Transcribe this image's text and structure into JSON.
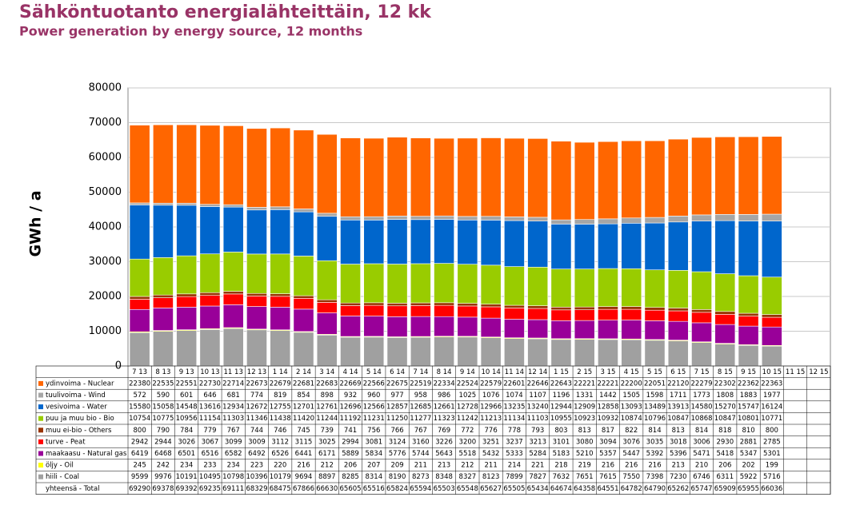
{
  "chart_data": {
    "type": "stacked-bar",
    "title": "Sähköntuotanto energialähteittäin, 12 kk",
    "subtitle": "Power generation by energy source, 12 months",
    "y_label": "GWh / a",
    "categories": [
      "7 13",
      "8 13",
      "9 13",
      "10 13",
      "11 13",
      "12 13",
      "1 14",
      "2 14",
      "3 14",
      "4 14",
      "5 14",
      "6 14",
      "7 14",
      "8 14",
      "9 14",
      "10 14",
      "11 14",
      "12 14",
      "1 15",
      "2 15",
      "3 15",
      "4 15",
      "5 15",
      "6 15",
      "7 15",
      "8 15",
      "9 15",
      "10 15",
      "11 15",
      "12 15"
    ],
    "ylim": [
      0,
      80000
    ],
    "yticks": [
      0,
      10000,
      20000,
      30000,
      40000,
      50000,
      60000,
      70000,
      80000
    ],
    "grid": true,
    "series": [
      {
        "name": "hiili - Coal",
        "color": "#a0a0a0",
        "values": [
          9599,
          9976,
          10191,
          10495,
          10798,
          10396,
          10179,
          9694,
          8897,
          8285,
          8314,
          8190,
          8273,
          8348,
          8327,
          8123,
          7899,
          7827,
          7632,
          7651,
          7615,
          7550,
          7398,
          7230,
          6746,
          6311,
          5922,
          5716,
          null,
          null
        ]
      },
      {
        "name": "öljy - Oil",
        "color": "#ffff00",
        "values": [
          245,
          242,
          234,
          233,
          234,
          223,
          220,
          216,
          212,
          206,
          207,
          209,
          211,
          213,
          212,
          211,
          214,
          221,
          218,
          219,
          216,
          216,
          216,
          213,
          210,
          206,
          202,
          199,
          null,
          null
        ]
      },
      {
        "name": "maakaasu - Natural gas",
        "color": "#990099",
        "values": [
          6419,
          6468,
          6501,
          6516,
          6582,
          6492,
          6526,
          6441,
          6171,
          5889,
          5834,
          5776,
          5744,
          5643,
          5518,
          5432,
          5333,
          5284,
          5183,
          5210,
          5357,
          5447,
          5392,
          5396,
          5471,
          5418,
          5347,
          5301,
          null,
          null
        ]
      },
      {
        "name": "turve - Peat",
        "color": "#ff0000",
        "values": [
          2942,
          2944,
          3026,
          3067,
          3099,
          3009,
          3112,
          3115,
          3025,
          2994,
          3081,
          3124,
          3160,
          3226,
          3200,
          3251,
          3237,
          3213,
          3101,
          3080,
          3094,
          3076,
          3035,
          3018,
          3006,
          2930,
          2881,
          2785,
          null,
          null
        ]
      },
      {
        "name": "muu ei-bio - Others",
        "color": "#993300",
        "values": [
          800,
          790,
          784,
          779,
          767,
          744,
          746,
          745,
          739,
          741,
          756,
          766,
          767,
          769,
          772,
          776,
          778,
          793,
          803,
          813,
          817,
          822,
          814,
          813,
          814,
          818,
          810,
          800,
          null,
          null
        ]
      },
      {
        "name": "puu ja muu bio - Bio",
        "color": "#99cc00",
        "values": [
          10754,
          10775,
          10956,
          11154,
          11303,
          11346,
          11438,
          11420,
          11244,
          11192,
          11231,
          11250,
          11277,
          11323,
          11242,
          11213,
          11134,
          11103,
          10955,
          10923,
          10932,
          10874,
          10796,
          10847,
          10868,
          10847,
          10801,
          10771,
          null,
          null
        ]
      },
      {
        "name": "vesivoima - Water",
        "color": "#0066cc",
        "values": [
          15580,
          15058,
          14548,
          13616,
          12934,
          12672,
          12755,
          12701,
          12761,
          12696,
          12566,
          12857,
          12685,
          12661,
          12728,
          12966,
          13235,
          13240,
          12944,
          12909,
          12858,
          13093,
          13489,
          13913,
          14580,
          15270,
          15747,
          16124,
          null,
          null
        ]
      },
      {
        "name": "tuulivoima - Wind",
        "color": "#a6a6a6",
        "values": [
          572,
          590,
          601,
          646,
          681,
          774,
          819,
          854,
          898,
          932,
          960,
          977,
          958,
          986,
          1025,
          1076,
          1074,
          1107,
          1196,
          1331,
          1442,
          1505,
          1598,
          1711,
          1773,
          1808,
          1883,
          1977,
          null,
          null
        ]
      },
      {
        "name": "ydinvoima - Nuclear",
        "color": "#ff6600",
        "values": [
          22380,
          22535,
          22551,
          22730,
          22714,
          22673,
          22679,
          22681,
          22683,
          22669,
          22566,
          22675,
          22519,
          22334,
          22524,
          22579,
          22601,
          22646,
          22643,
          22221,
          22221,
          22200,
          22051,
          22120,
          22279,
          22302,
          22362,
          22363,
          null,
          null
        ]
      }
    ],
    "total": {
      "name": "yhteensä - Total",
      "values": [
        69290,
        69378,
        69392,
        69235,
        69111,
        68329,
        68475,
        67866,
        66630,
        65605,
        65516,
        65824,
        65594,
        65503,
        65548,
        65627,
        65505,
        65434,
        64674,
        64358,
        64551,
        64782,
        64790,
        65262,
        65747,
        65909,
        65955,
        66036,
        null,
        null
      ]
    }
  }
}
